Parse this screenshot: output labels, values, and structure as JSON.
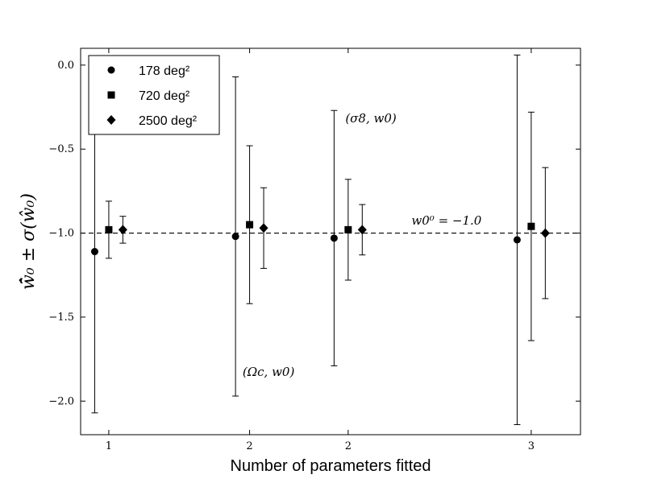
{
  "chart_data": {
    "type": "scatter",
    "xlabel": "Number of parameters fitted",
    "ylabel": "w̄̂₀ ± σ(ŵ₀)",
    "ylim": [
      -2.2,
      0.1
    ],
    "xlim": [
      0.8,
      4.35
    ],
    "x_ticks": [
      {
        "pos": 1.0,
        "label": "1"
      },
      {
        "pos": 2.0,
        "label": "2"
      },
      {
        "pos": 2.7,
        "label": "2"
      },
      {
        "pos": 4.0,
        "label": "3"
      }
    ],
    "y_ticks": [
      {
        "value": 0.0,
        "label": "0.0"
      },
      {
        "value": -0.5,
        "label": "−0.5"
      },
      {
        "value": -1.0,
        "label": "−1.0"
      },
      {
        "value": -1.5,
        "label": "−1.5"
      },
      {
        "value": -2.0,
        "label": "−2.0"
      }
    ],
    "reference_line": {
      "y": -1.0,
      "style": "dashed",
      "label": "w₀⁰ = −1.0"
    },
    "legend": {
      "placement": "top-left"
    },
    "series": [
      {
        "name": "178 deg²",
        "marker": "circle",
        "points": [
          {
            "x": 0.9,
            "y": -1.11,
            "err": 0.96
          },
          {
            "x": 1.9,
            "y": -1.02,
            "err": 0.95
          },
          {
            "x": 2.6,
            "y": -1.03,
            "err": 0.76
          },
          {
            "x": 3.9,
            "y": -1.04,
            "err": 1.1
          }
        ]
      },
      {
        "name": "720 deg²",
        "marker": "square",
        "points": [
          {
            "x": 1.0,
            "y": -0.98,
            "err": 0.17
          },
          {
            "x": 2.0,
            "y": -0.95,
            "err": 0.47
          },
          {
            "x": 2.7,
            "y": -0.98,
            "err": 0.3
          },
          {
            "x": 4.0,
            "y": -0.96,
            "err": 0.68
          }
        ]
      },
      {
        "name": "2500 deg²",
        "marker": "diamond",
        "points": [
          {
            "x": 1.1,
            "y": -0.98,
            "err": 0.08
          },
          {
            "x": 2.1,
            "y": -0.97,
            "err": 0.24
          },
          {
            "x": 2.8,
            "y": -0.98,
            "err": 0.15
          },
          {
            "x": 4.1,
            "y": -1.0,
            "err": 0.39
          }
        ]
      }
    ],
    "annotations": [
      {
        "text": "(Ωc, w0)",
        "x": 1.95,
        "y": -1.85
      },
      {
        "text": "(σ8, w0)",
        "x": 2.68,
        "y": -0.34
      },
      {
        "text": "w0⁰ = −1.0",
        "x": 3.15,
        "y": -0.95
      }
    ]
  }
}
